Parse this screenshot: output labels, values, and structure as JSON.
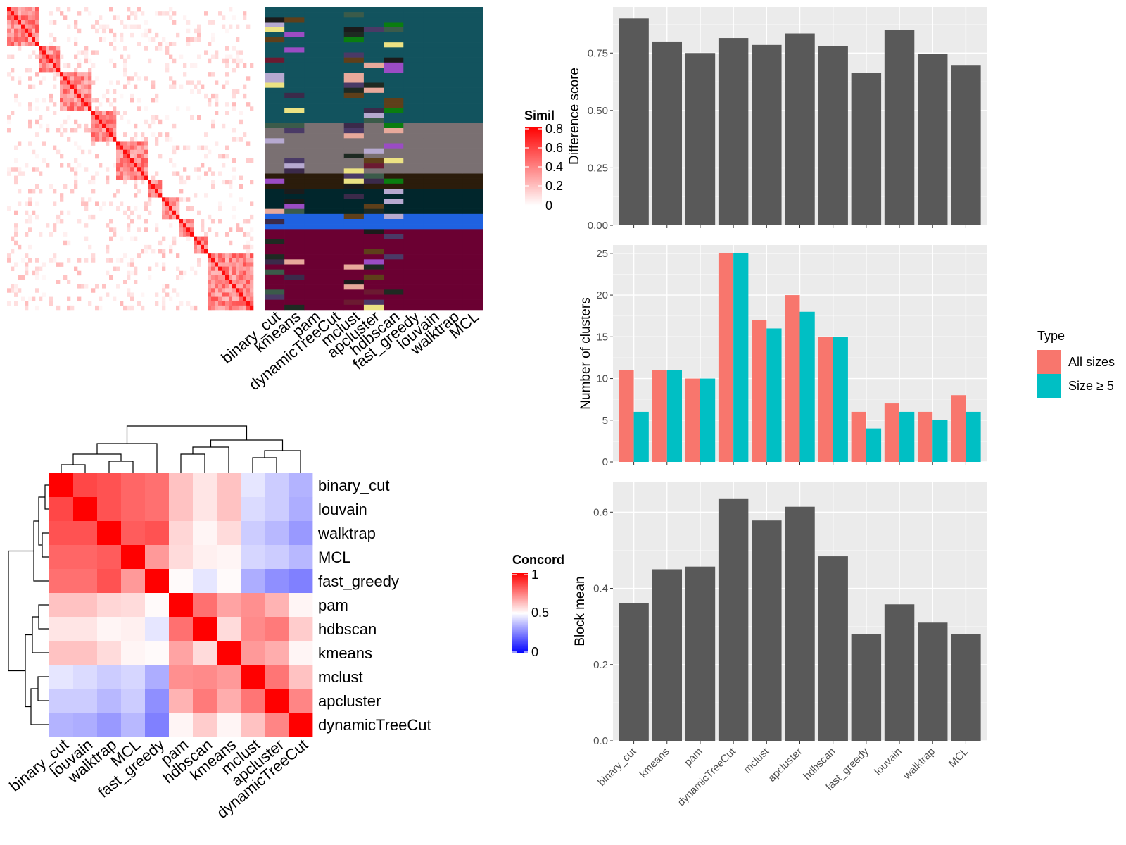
{
  "chart_data": [
    {
      "id": "similarity-heatmap",
      "type": "heatmap",
      "title": "",
      "legend_title": "Similarity",
      "legend_ticks": [
        "0.8",
        "0.6",
        "0.4",
        "0.2",
        "0"
      ],
      "colors": {
        "high": "#ff0000",
        "low": "#ffffff"
      }
    },
    {
      "id": "cluster-assignment-heatmap",
      "type": "heatmap",
      "columns": [
        "binary_cut",
        "kmeans",
        "pam",
        "dynamicTreeCut",
        "mclust",
        "apcluster",
        "hdbscan",
        "fast_greedy",
        "louvain",
        "walktrap",
        "MCL"
      ],
      "cluster_colors": [
        "#12535e",
        "#7a7072",
        "#2b1c0b",
        "#01262c",
        "#1f62e0",
        "#6b0032"
      ]
    },
    {
      "id": "difference-score-bar",
      "type": "bar",
      "categories": [
        "binary_cut",
        "kmeans",
        "pam",
        "dynamicTreeCut",
        "mclust",
        "apcluster",
        "hdbscan",
        "fast_greedy",
        "louvain",
        "walktrap",
        "MCL"
      ],
      "values": [
        0.9,
        0.8,
        0.75,
        0.815,
        0.785,
        0.835,
        0.78,
        0.665,
        0.85,
        0.745,
        0.695
      ],
      "ylabel": "Difference score",
      "ylim": [
        0,
        0.95
      ],
      "yticks": [
        "0.00",
        "0.25",
        "0.50",
        "0.75"
      ],
      "bar_color": "#595959"
    },
    {
      "id": "number-of-clusters-bar",
      "type": "bar",
      "categories": [
        "binary_cut",
        "kmeans",
        "pam",
        "dynamicTreeCut",
        "mclust",
        "apcluster",
        "hdbscan",
        "fast_greedy",
        "louvain",
        "walktrap",
        "MCL"
      ],
      "series": [
        {
          "name": "All sizes",
          "values": [
            11,
            11,
            10,
            25,
            17,
            20,
            15,
            6,
            7,
            6,
            8
          ],
          "color": "#f8766d"
        },
        {
          "name": "Size ≥ 5",
          "values": [
            6,
            11,
            10,
            25,
            16,
            18,
            15,
            4,
            6,
            5,
            6
          ],
          "color": "#00bfc4"
        }
      ],
      "ylabel": "Number of clusters",
      "ylim": [
        0,
        26
      ],
      "yticks": [
        "0",
        "5",
        "10",
        "15",
        "20",
        "25"
      ],
      "legend_title": "Type",
      "legend_position": "right"
    },
    {
      "id": "block-mean-bar",
      "type": "bar",
      "categories": [
        "binary_cut",
        "kmeans",
        "pam",
        "dynamicTreeCut",
        "mclust",
        "apcluster",
        "hdbscan",
        "fast_greedy",
        "louvain",
        "walktrap",
        "MCL"
      ],
      "values": [
        0.362,
        0.45,
        0.457,
        0.636,
        0.578,
        0.614,
        0.484,
        0.28,
        0.358,
        0.31,
        0.28
      ],
      "ylabel": "Block mean",
      "ylim": [
        0,
        0.68
      ],
      "yticks": [
        "0.0",
        "0.2",
        "0.4",
        "0.6"
      ],
      "bar_color": "#595959"
    },
    {
      "id": "concordance-heatmap",
      "type": "heatmap",
      "labels": [
        "binary_cut",
        "louvain",
        "walktrap",
        "MCL",
        "fast_greedy",
        "pam",
        "hdbscan",
        "kmeans",
        "mclust",
        "apcluster",
        "dynamicTreeCut"
      ],
      "matrix": [
        [
          1.0,
          0.86,
          0.84,
          0.8,
          0.78,
          0.62,
          0.55,
          0.62,
          0.45,
          0.4,
          0.35
        ],
        [
          0.86,
          1.0,
          0.84,
          0.8,
          0.78,
          0.62,
          0.55,
          0.62,
          0.43,
          0.4,
          0.34
        ],
        [
          0.84,
          0.84,
          1.0,
          0.82,
          0.84,
          0.58,
          0.52,
          0.57,
          0.4,
          0.36,
          0.3
        ],
        [
          0.8,
          0.8,
          0.82,
          1.0,
          0.7,
          0.57,
          0.53,
          0.52,
          0.42,
          0.4,
          0.36
        ],
        [
          0.78,
          0.78,
          0.84,
          0.7,
          1.0,
          0.51,
          0.45,
          0.51,
          0.34,
          0.28,
          0.25
        ],
        [
          0.62,
          0.62,
          0.58,
          0.57,
          0.51,
          1.0,
          0.78,
          0.68,
          0.72,
          0.65,
          0.52
        ],
        [
          0.55,
          0.55,
          0.52,
          0.53,
          0.45,
          0.78,
          1.0,
          0.57,
          0.73,
          0.76,
          0.6
        ],
        [
          0.62,
          0.62,
          0.57,
          0.52,
          0.51,
          0.68,
          0.57,
          1.0,
          0.7,
          0.66,
          0.52
        ],
        [
          0.45,
          0.43,
          0.4,
          0.42,
          0.34,
          0.72,
          0.73,
          0.7,
          1.0,
          0.77,
          0.62
        ],
        [
          0.4,
          0.4,
          0.36,
          0.4,
          0.28,
          0.65,
          0.76,
          0.66,
          0.77,
          1.0,
          0.74
        ],
        [
          0.35,
          0.34,
          0.3,
          0.36,
          0.25,
          0.52,
          0.6,
          0.52,
          0.62,
          0.74,
          1.0
        ]
      ],
      "legend_title": "Concordance",
      "legend_ticks": [
        "1",
        "0.5",
        "0"
      ],
      "colors": {
        "high": "#ff0000",
        "mid": "#ffffff",
        "low": "#0000ff"
      }
    }
  ]
}
